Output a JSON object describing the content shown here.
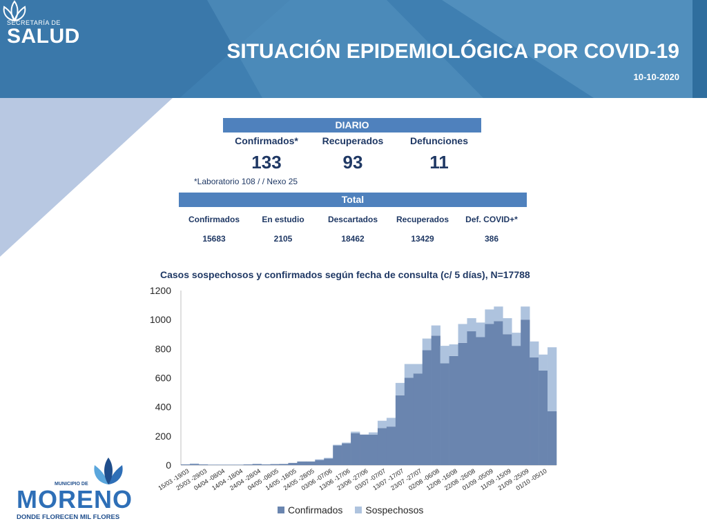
{
  "header": {
    "logo_small_top": "SECRETARÍA DE",
    "logo_small_main": "SALUD",
    "title": "SITUACIÓN EPIDEMIOLÓGICA POR COVID-19",
    "date": "10-10-2020"
  },
  "daily": {
    "label": "DIARIO",
    "confirmados_label": "Confirmados*",
    "confirmados_value": "133",
    "recuperados_label": "Recuperados",
    "recuperados_value": "93",
    "defunciones_label": "Defunciones",
    "defunciones_value": "11",
    "note": "*Laboratorio 108 / / Nexo 25"
  },
  "total": {
    "label": "Total",
    "headers": [
      "Confirmados",
      "En estudio",
      "Descartados",
      "Recuperados",
      "Def. COVID+*"
    ],
    "values": [
      "15683",
      "2105",
      "18462",
      "13429",
      "386"
    ]
  },
  "chart_data": {
    "type": "bar",
    "stacked": true,
    "title": "Casos sospechosos y confirmados según fecha de consulta (c/ 5 días), N=17788",
    "ylim": [
      0,
      1200
    ],
    "yticks": [
      0,
      200,
      400,
      600,
      800,
      1000,
      1200
    ],
    "grid": false,
    "legend_position": "bottom",
    "categories": [
      "15/03 -19/03",
      "20/03 -24/03",
      "25/03 -29/03",
      "30/03 -03/04",
      "04/04 -08/04",
      "09/04 -13/04",
      "14/04 -18/04",
      "19/04 -23/04",
      "24/04 -28/04",
      "29/04 -03/05",
      "04/05 -08/05",
      "09/05 -13/05",
      "14/05 -18/05",
      "19/05 -23/05",
      "24/05 -28/05",
      "29/05 -02/06",
      "03/06 -07/06",
      "08/06 -12/06",
      "13/06 -17/06",
      "18/06 -22/06",
      "23/06 -27/06",
      "28/06 -02/07",
      "03/07 -07/07",
      "08/07 -12/07",
      "13/07 -17/07",
      "18/07 -22/07",
      "23/07 -27/07",
      "28/07 -01/08",
      "02/08 -06/08",
      "07/08 -11/08",
      "12/08 -16/08",
      "17/08 -21/08",
      "22/08 -26/08",
      "27/08 -31/08",
      "01/09 -05/09",
      "06/09 -10/09",
      "11/09 -15/09",
      "16/09 -20/09",
      "21/09 -25/09",
      "26/09 -30/09",
      "01/10 -05/10",
      "06/10 -10/10"
    ],
    "tick_labels": [
      "15/03 -19/03",
      "25/03 -29/03",
      "04/04 -08/04",
      "14/04 -18/04",
      "24/04 -28/04",
      "04/05 -08/05",
      "14/05 -18/05",
      "24/05 -28/05",
      "03/06 -07/06",
      "13/06 -17/06",
      "23/06 -27/06",
      "03/07 -07/07",
      "13/07 -17/07",
      "23/07 -27/07",
      "02/08 -06/08",
      "12/08 -16/08",
      "22/08 -26/08",
      "01/09 -05/09",
      "11/09 -15/09",
      "21/09 -25/09",
      "01/10 -05/10"
    ],
    "series": [
      {
        "name": "Confirmados",
        "color": "#6a85af",
        "values": [
          5,
          8,
          5,
          3,
          3,
          3,
          3,
          5,
          8,
          5,
          7,
          8,
          15,
          25,
          25,
          35,
          45,
          135,
          150,
          220,
          210,
          210,
          255,
          265,
          480,
          600,
          630,
          790,
          890,
          700,
          750,
          840,
          920,
          880,
          970,
          990,
          900,
          820,
          1000,
          740,
          650,
          370
        ]
      },
      {
        "name": "Sospechosos",
        "color": "#aec3de",
        "values": [
          0,
          3,
          0,
          0,
          0,
          0,
          0,
          0,
          0,
          0,
          0,
          0,
          0,
          0,
          0,
          5,
          5,
          5,
          5,
          10,
          0,
          15,
          50,
          60,
          85,
          95,
          65,
          80,
          70,
          120,
          80,
          130,
          90,
          100,
          100,
          100,
          110,
          90,
          90,
          110,
          110,
          440
        ]
      }
    ]
  },
  "footer": {
    "logo_municipio": "MUNICIPIO DE",
    "logo_name": "MORENO",
    "logo_tagline": "DONDE FLORECEN MIL FLORES"
  }
}
